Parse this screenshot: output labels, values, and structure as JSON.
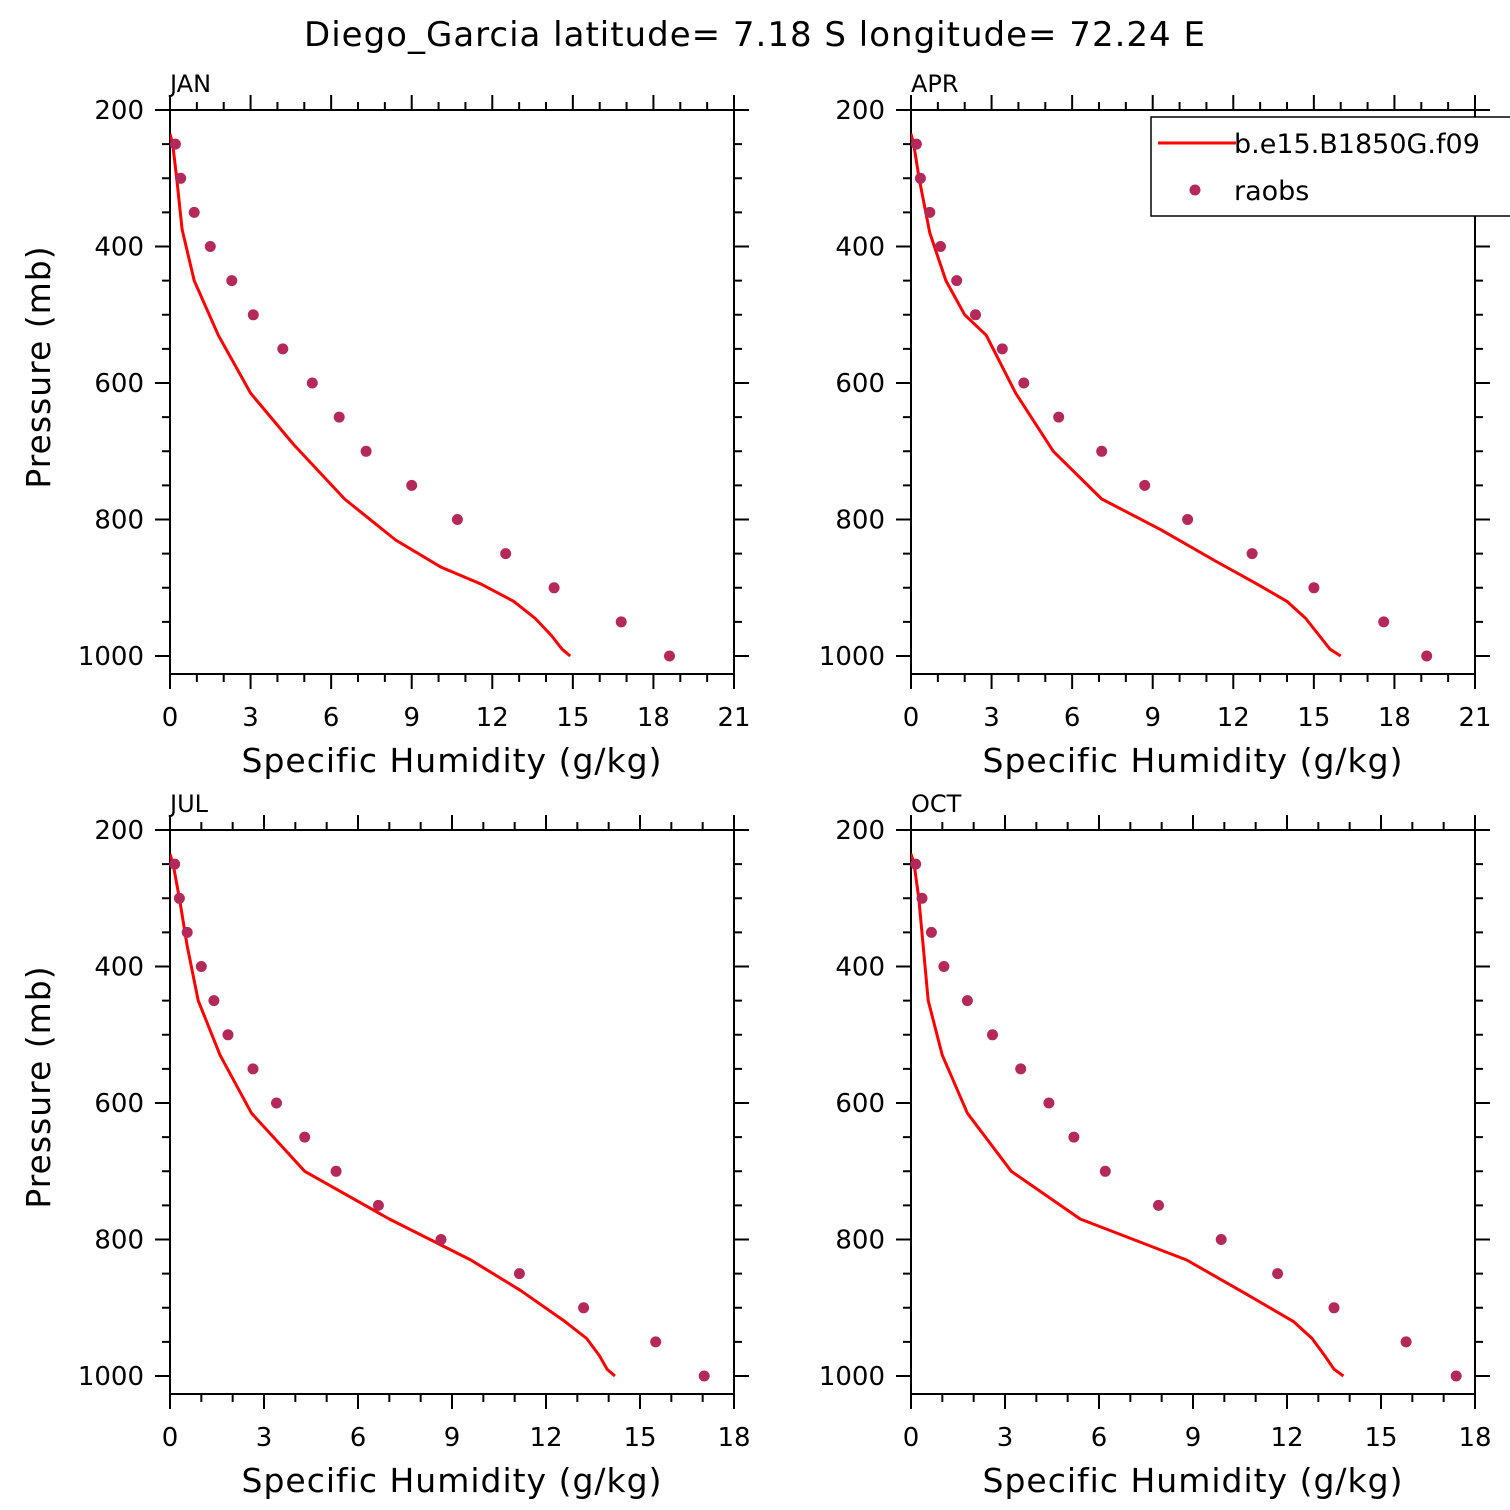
{
  "figure": {
    "title": "Diego_Garcia  latitude= 7.18 S longitude= 72.24 E"
  },
  "colors": {
    "model_line": "#ff0000",
    "obs_marker": "#b5285a",
    "axes": "#000000",
    "background": "#ffffff"
  },
  "legend": {
    "placement": "top-right of APR panel",
    "entries": [
      {
        "label": "b.e15.B1850G.f09",
        "kind": "line",
        "color": "#ff0000"
      },
      {
        "label": "raobs",
        "kind": "marker",
        "color": "#b5285a"
      }
    ]
  },
  "chart_data": [
    {
      "type": "line",
      "panel": "JAN",
      "xlabel": "Specific Humidity (g/kg)",
      "ylabel": "Pressure (mb)",
      "xlim": [
        0,
        21
      ],
      "ylim": [
        1000,
        200
      ],
      "y_inverted": true,
      "xticks": [
        0,
        3,
        6,
        9,
        12,
        15,
        18,
        21
      ],
      "yticks": [
        200,
        400,
        600,
        800,
        1000
      ],
      "series": [
        {
          "name": "b.e15.B1850G.f09",
          "kind": "line",
          "x": [
            0.0,
            0.1,
            0.25,
            0.45,
            0.9,
            1.8,
            3.0,
            4.6,
            6.5,
            8.4,
            10.1,
            11.6,
            12.8,
            13.6,
            14.2,
            14.6,
            14.9
          ],
          "y": [
            235,
            250,
            300,
            375,
            450,
            530,
            615,
            690,
            770,
            830,
            870,
            895,
            920,
            945,
            970,
            990,
            1000
          ]
        },
        {
          "name": "raobs",
          "kind": "scatter",
          "x": [
            0.2,
            0.4,
            0.9,
            1.5,
            2.3,
            3.1,
            4.2,
            5.3,
            6.3,
            7.3,
            9.0,
            10.7,
            12.5,
            14.3,
            16.8,
            18.6
          ],
          "y": [
            250,
            300,
            350,
            400,
            450,
            500,
            550,
            600,
            650,
            700,
            750,
            800,
            850,
            900,
            950,
            1000
          ]
        }
      ]
    },
    {
      "type": "line",
      "panel": "APR",
      "xlabel": "Specific Humidity (g/kg)",
      "ylabel": "",
      "xlim": [
        0,
        21
      ],
      "ylim": [
        1000,
        200
      ],
      "y_inverted": true,
      "xticks": [
        0,
        3,
        6,
        9,
        12,
        15,
        18,
        21
      ],
      "yticks": [
        200,
        400,
        600,
        800,
        1000
      ],
      "series": [
        {
          "name": "b.e15.B1850G.f09",
          "kind": "line",
          "x": [
            0.0,
            0.1,
            0.3,
            0.7,
            1.3,
            2.0,
            2.8,
            3.9,
            5.3,
            7.1,
            9.3,
            11.3,
            12.9,
            14.0,
            14.7,
            15.2,
            15.6,
            16.0
          ],
          "y": [
            235,
            250,
            300,
            380,
            450,
            500,
            530,
            615,
            700,
            770,
            815,
            860,
            895,
            920,
            945,
            970,
            990,
            1000
          ]
        },
        {
          "name": "raobs",
          "kind": "scatter",
          "x": [
            0.2,
            0.35,
            0.7,
            1.1,
            1.7,
            2.4,
            3.4,
            4.2,
            5.5,
            7.1,
            8.7,
            10.3,
            12.7,
            15.0,
            17.6,
            19.2
          ],
          "y": [
            250,
            300,
            350,
            400,
            450,
            500,
            550,
            600,
            650,
            700,
            750,
            800,
            850,
            900,
            950,
            1000
          ]
        }
      ]
    },
    {
      "type": "line",
      "panel": "JUL",
      "xlabel": "Specific Humidity (g/kg)",
      "ylabel": "Pressure (mb)",
      "xlim": [
        0,
        18
      ],
      "ylim": [
        1000,
        200
      ],
      "y_inverted": true,
      "xticks": [
        0,
        3,
        6,
        9,
        12,
        15,
        18
      ],
      "yticks": [
        200,
        400,
        600,
        800,
        1000
      ],
      "series": [
        {
          "name": "b.e15.B1850G.f09",
          "kind": "line",
          "x": [
            0.0,
            0.1,
            0.3,
            0.55,
            0.9,
            1.6,
            2.6,
            4.3,
            7.0,
            9.6,
            11.2,
            12.6,
            13.3,
            13.7,
            13.95,
            14.2
          ],
          "y": [
            235,
            250,
            300,
            370,
            450,
            530,
            615,
            700,
            770,
            830,
            875,
            920,
            945,
            970,
            990,
            1000
          ]
        },
        {
          "name": "raobs",
          "kind": "scatter",
          "x": [
            0.15,
            0.3,
            0.55,
            1.0,
            1.4,
            1.85,
            2.65,
            3.4,
            4.3,
            5.3,
            6.65,
            8.65,
            11.15,
            13.2,
            15.5,
            17.05
          ],
          "y": [
            250,
            300,
            350,
            400,
            450,
            500,
            550,
            600,
            650,
            700,
            750,
            800,
            850,
            900,
            950,
            1000
          ]
        }
      ]
    },
    {
      "type": "line",
      "panel": "OCT",
      "xlabel": "Specific Humidity (g/kg)",
      "ylabel": "",
      "xlim": [
        0,
        18
      ],
      "ylim": [
        1000,
        200
      ],
      "y_inverted": true,
      "xticks": [
        0,
        3,
        6,
        9,
        12,
        15,
        18
      ],
      "yticks": [
        200,
        400,
        600,
        800,
        1000
      ],
      "series": [
        {
          "name": "b.e15.B1850G.f09",
          "kind": "line",
          "x": [
            0.0,
            0.1,
            0.25,
            0.55,
            1.0,
            1.8,
            3.2,
            5.4,
            8.8,
            10.7,
            12.2,
            12.8,
            13.2,
            13.5,
            13.8
          ],
          "y": [
            235,
            250,
            300,
            450,
            530,
            615,
            700,
            770,
            830,
            880,
            920,
            945,
            970,
            990,
            1000
          ]
        },
        {
          "name": "raobs",
          "kind": "scatter",
          "x": [
            0.15,
            0.35,
            0.65,
            1.05,
            1.8,
            2.6,
            3.5,
            4.4,
            5.2,
            6.2,
            7.9,
            9.9,
            11.7,
            13.5,
            15.8,
            17.4
          ],
          "y": [
            250,
            300,
            350,
            400,
            450,
            500,
            550,
            600,
            650,
            700,
            750,
            800,
            850,
            900,
            950,
            1000
          ]
        }
      ]
    }
  ]
}
